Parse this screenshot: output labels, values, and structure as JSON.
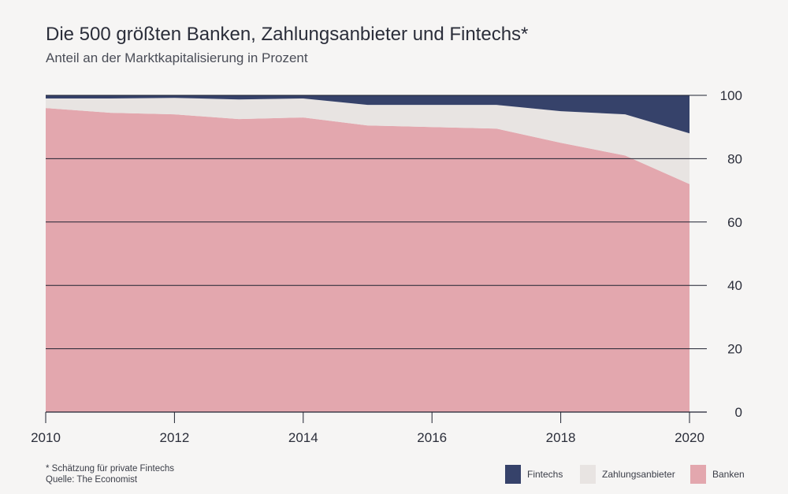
{
  "header": {
    "title": "Die 500 größten Banken, Zahlungsanbieter und Fintechs*",
    "subtitle": "Anteil an der Marktkapitalisierung in Prozent"
  },
  "footer": {
    "note": "* Schätzung für private Fintechs",
    "source": "Quelle: The Economist"
  },
  "chart_data": {
    "type": "area",
    "stacked": true,
    "title": "Die 500 größten Banken, Zahlungsanbieter und Fintechs*",
    "subtitle": "Anteil an der Marktkapitalisierung in Prozent",
    "x": [
      2010,
      2011,
      2012,
      2013,
      2014,
      2015,
      2016,
      2017,
      2018,
      2019,
      2020
    ],
    "xlim": [
      2010,
      2020
    ],
    "ylim": [
      0,
      100
    ],
    "x_ticks": [
      "2010",
      "2012",
      "2014",
      "2016",
      "2018",
      "2020"
    ],
    "y_ticks": [
      "0",
      "20",
      "40",
      "60",
      "80",
      "100"
    ],
    "y_axis_side": "right",
    "grid": true,
    "legend_position": "bottom-right",
    "series": [
      {
        "name": "Banken",
        "color": "#e3a7ae",
        "values": [
          96,
          94.5,
          94,
          92.5,
          93,
          90.5,
          90,
          89.5,
          85,
          81,
          72
        ]
      },
      {
        "name": "Zahlungsanbieter",
        "color": "#e8e4e2",
        "values": [
          3,
          4.5,
          5.2,
          6.2,
          6,
          6.5,
          7,
          7.5,
          10,
          13,
          16
        ]
      },
      {
        "name": "Fintechs",
        "color": "#36426a",
        "values": [
          1,
          1,
          0.8,
          1.3,
          1,
          3,
          3,
          3,
          5,
          6,
          12
        ]
      }
    ]
  }
}
